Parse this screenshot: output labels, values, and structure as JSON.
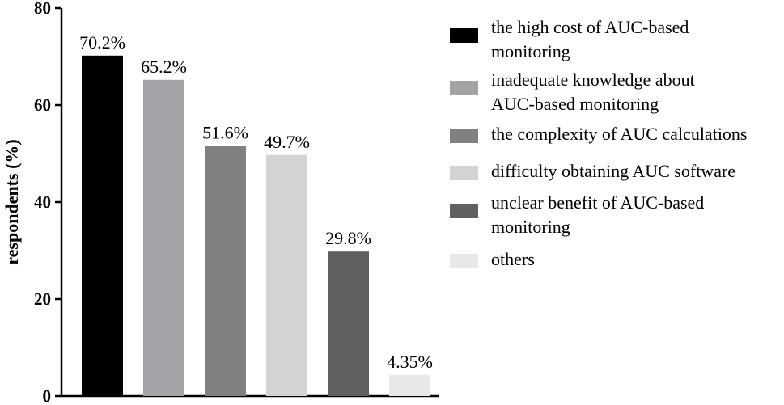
{
  "chart_data": {
    "type": "bar",
    "title": "",
    "xlabel": "",
    "ylabel": "respondents (%)",
    "ylim": [
      0,
      80
    ],
    "yticks": [
      0,
      20,
      40,
      60,
      80
    ],
    "grid": false,
    "legend_position": "right",
    "bars": [
      {
        "value": 70.2,
        "label": "70.2%",
        "color": "#000000",
        "legend": [
          "the high cost of AUC-based",
          "monitoring"
        ]
      },
      {
        "value": 65.2,
        "label": "65.2%",
        "color": "#a3a3a7",
        "legend": [
          "inadequate knowledge about",
          "AUC-based monitoring"
        ]
      },
      {
        "value": 51.6,
        "label": "51.6%",
        "color": "#808080",
        "legend": [
          "the complexity of AUC calculations"
        ]
      },
      {
        "value": 49.7,
        "label": "49.7%",
        "color": "#d3d3d3",
        "legend": [
          "difficulty obtaining AUC software"
        ]
      },
      {
        "value": 29.8,
        "label": "29.8%",
        "color": "#606060",
        "legend": [
          "unclear benefit of AUC-based",
          "monitoring"
        ]
      },
      {
        "value": 4.35,
        "label": "4.35%",
        "color": "#e8e8e8",
        "legend": [
          "others"
        ]
      }
    ]
  }
}
